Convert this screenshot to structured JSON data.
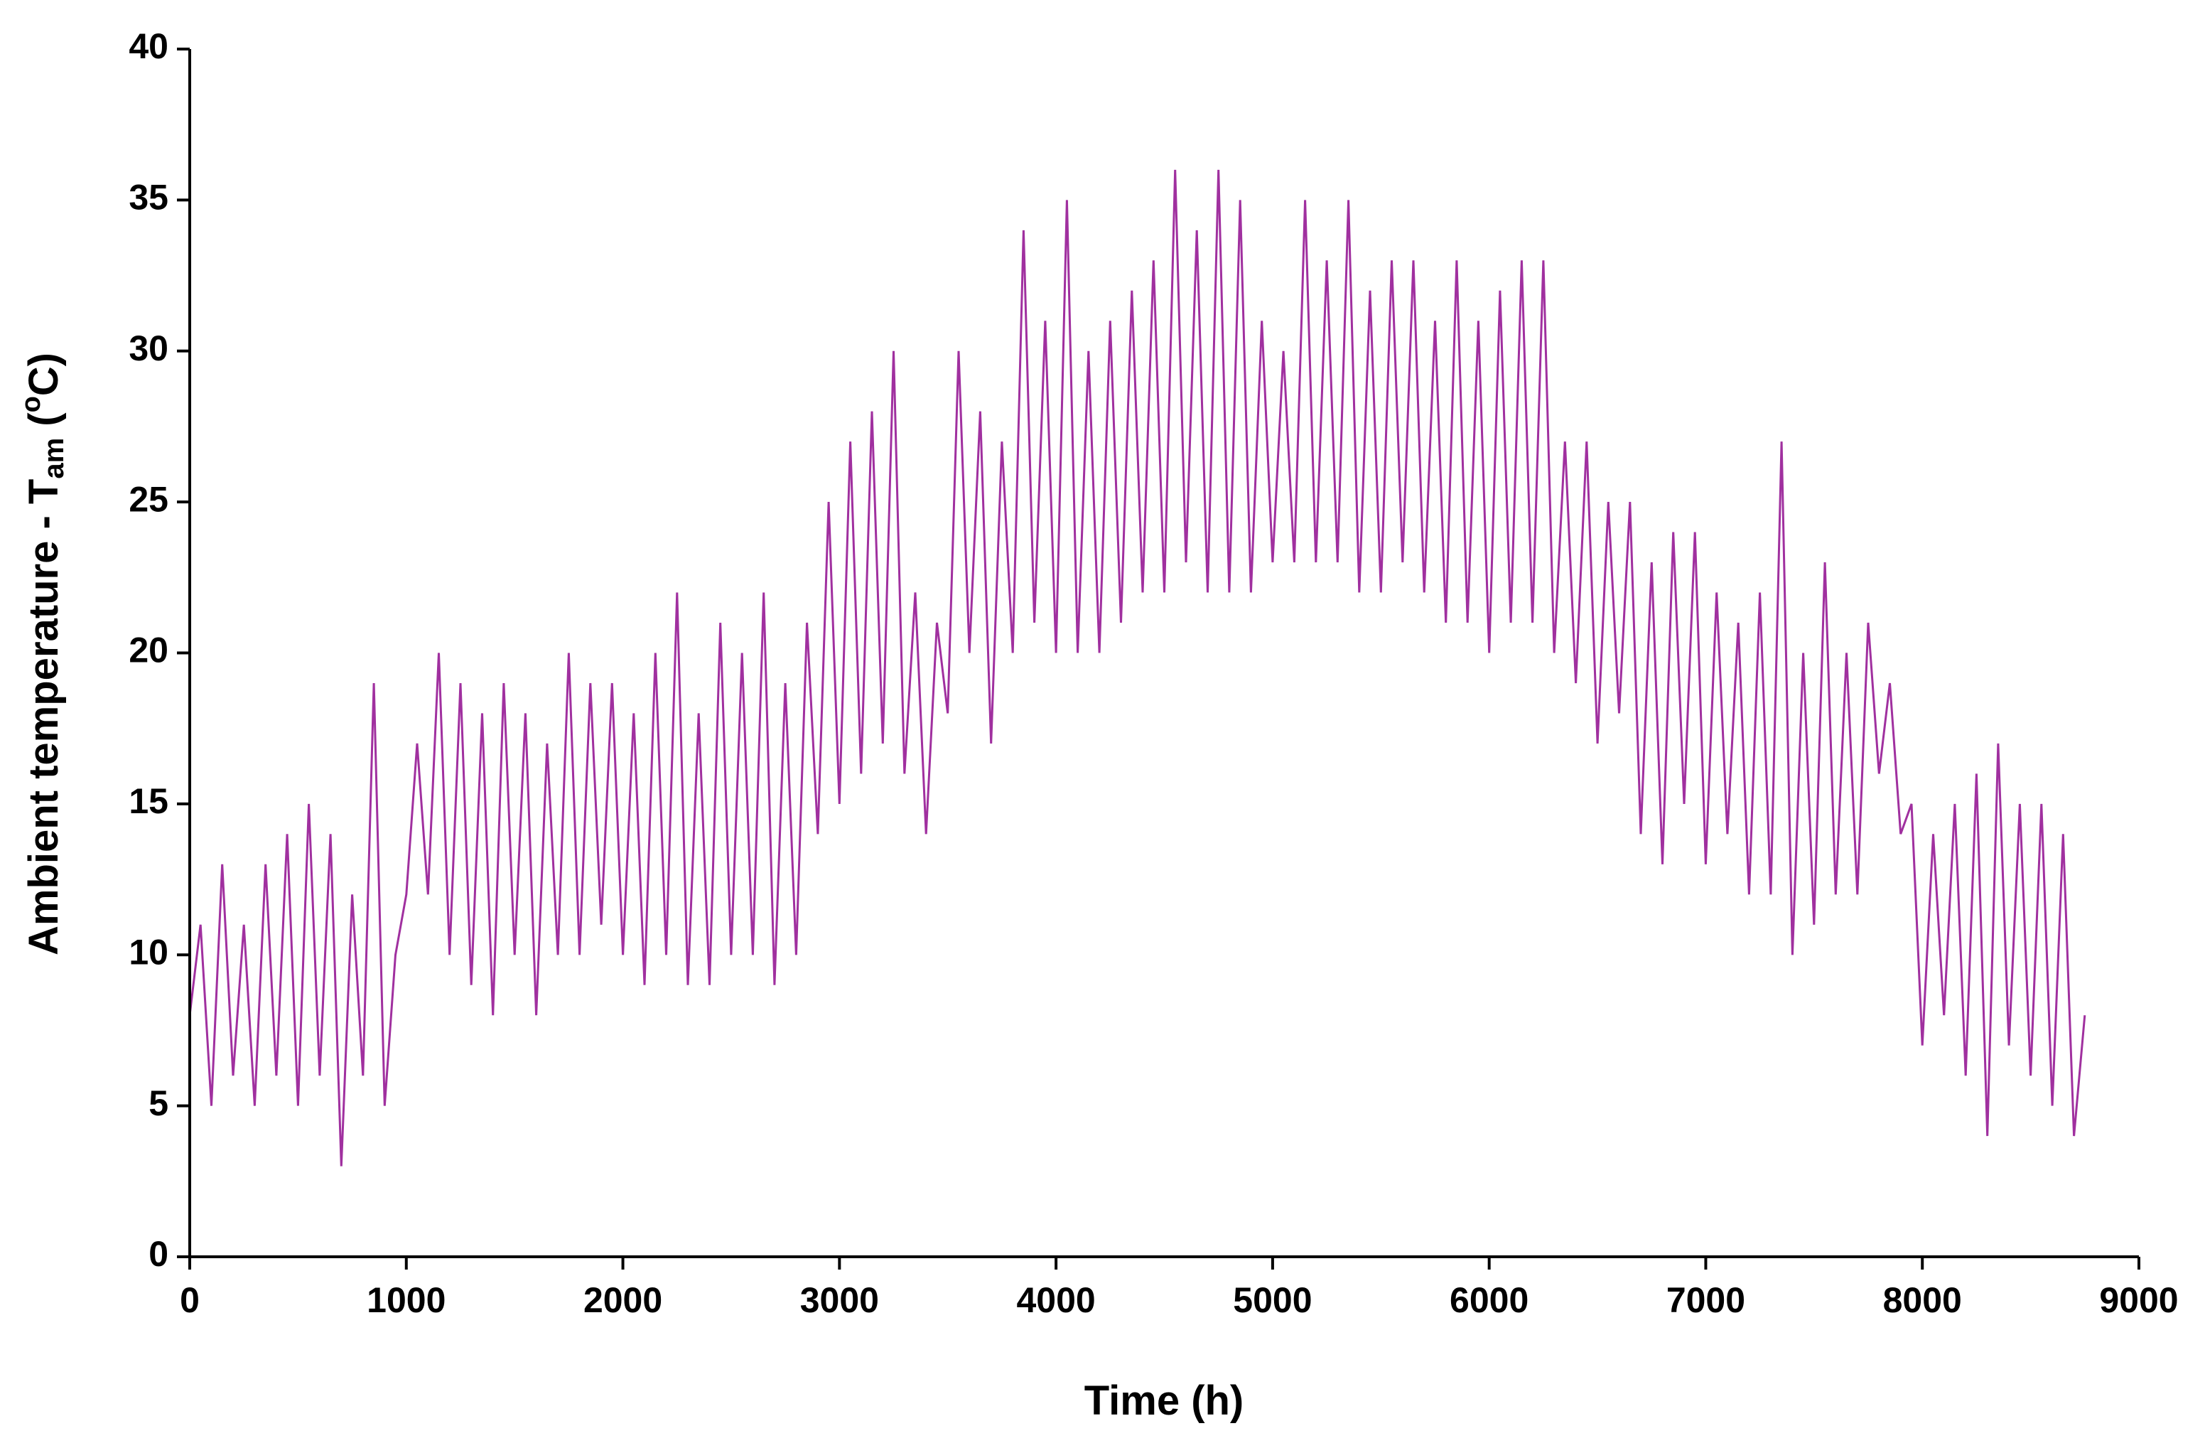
{
  "chart_data": {
    "type": "line",
    "x_label": "Time (h)",
    "y_label": [
      "Ambient temperature - T",
      "am",
      " (",
      "o",
      "C)"
    ],
    "x": [
      0,
      50,
      100,
      150,
      200,
      250,
      300,
      350,
      400,
      450,
      500,
      550,
      600,
      650,
      700,
      750,
      800,
      850,
      900,
      950,
      1000,
      1050,
      1100,
      1150,
      1200,
      1250,
      1300,
      1350,
      1400,
      1450,
      1500,
      1550,
      1600,
      1650,
      1700,
      1750,
      1800,
      1850,
      1900,
      1950,
      2000,
      2050,
      2100,
      2150,
      2200,
      2250,
      2300,
      2350,
      2400,
      2450,
      2500,
      2550,
      2600,
      2650,
      2700,
      2750,
      2800,
      2850,
      2900,
      2950,
      3000,
      3050,
      3100,
      3150,
      3200,
      3250,
      3300,
      3350,
      3400,
      3450,
      3500,
      3550,
      3600,
      3650,
      3700,
      3750,
      3800,
      3850,
      3900,
      3950,
      4000,
      4050,
      4100,
      4150,
      4200,
      4250,
      4300,
      4350,
      4400,
      4450,
      4500,
      4550,
      4600,
      4650,
      4700,
      4750,
      4800,
      4850,
      4900,
      4950,
      5000,
      5050,
      5100,
      5150,
      5200,
      5250,
      5300,
      5350,
      5400,
      5450,
      5500,
      5550,
      5600,
      5650,
      5700,
      5750,
      5800,
      5850,
      5900,
      5950,
      6000,
      6050,
      6100,
      6150,
      6200,
      6250,
      6300,
      6350,
      6400,
      6450,
      6500,
      6550,
      6600,
      6650,
      6700,
      6750,
      6800,
      6850,
      6900,
      6950,
      7000,
      7050,
      7100,
      7150,
      7200,
      7250,
      7300,
      7350,
      7400,
      7450,
      7500,
      7550,
      7600,
      7650,
      7700,
      7750,
      7800,
      7850,
      7900,
      7950,
      8000,
      8050,
      8100,
      8150,
      8200,
      8250,
      8300,
      8350,
      8400,
      8450,
      8500,
      8550,
      8600,
      8650,
      8700,
      8750
    ],
    "series": [
      {
        "color": "#a0309f",
        "values": [
          8,
          11,
          5,
          13,
          6,
          11,
          5,
          13,
          6,
          14,
          5,
          15,
          6,
          14,
          3,
          12,
          6,
          19,
          5,
          10,
          12,
          17,
          12,
          20,
          10,
          19,
          9,
          18,
          8,
          19,
          10,
          18,
          8,
          17,
          10,
          20,
          10,
          19,
          11,
          19,
          10,
          18,
          9,
          20,
          10,
          22,
          9,
          18,
          9,
          21,
          10,
          20,
          10,
          22,
          9,
          19,
          10,
          21,
          14,
          25,
          15,
          27,
          16,
          28,
          17,
          30,
          16,
          22,
          14,
          21,
          18,
          30,
          20,
          28,
          17,
          27,
          20,
          34,
          21,
          31,
          20,
          35,
          20,
          30,
          20,
          31,
          21,
          32,
          22,
          33,
          22,
          36,
          23,
          34,
          22,
          36,
          22,
          35,
          22,
          31,
          23,
          30,
          23,
          35,
          23,
          33,
          23,
          35,
          22,
          32,
          22,
          33,
          23,
          33,
          22,
          31,
          21,
          33,
          21,
          31,
          20,
          32,
          21,
          33,
          21,
          33,
          20,
          27,
          19,
          27,
          17,
          25,
          18,
          25,
          14,
          23,
          13,
          24,
          15,
          24,
          13,
          22,
          14,
          21,
          12,
          22,
          12,
          27,
          10,
          20,
          11,
          23,
          12,
          20,
          12,
          21,
          16,
          19,
          14,
          15,
          7,
          14,
          8,
          15,
          6,
          16,
          4,
          17,
          7,
          15,
          6,
          15,
          5,
          14,
          4,
          8
        ]
      }
    ],
    "xlim": [
      0,
      9000
    ],
    "xticks": [
      0,
      1000,
      2000,
      3000,
      4000,
      5000,
      6000,
      7000,
      8000,
      9000
    ],
    "ylim": [
      0,
      40
    ],
    "yticks": [
      0,
      5,
      10,
      15,
      20,
      25,
      30,
      35,
      40
    ],
    "grid": false
  }
}
